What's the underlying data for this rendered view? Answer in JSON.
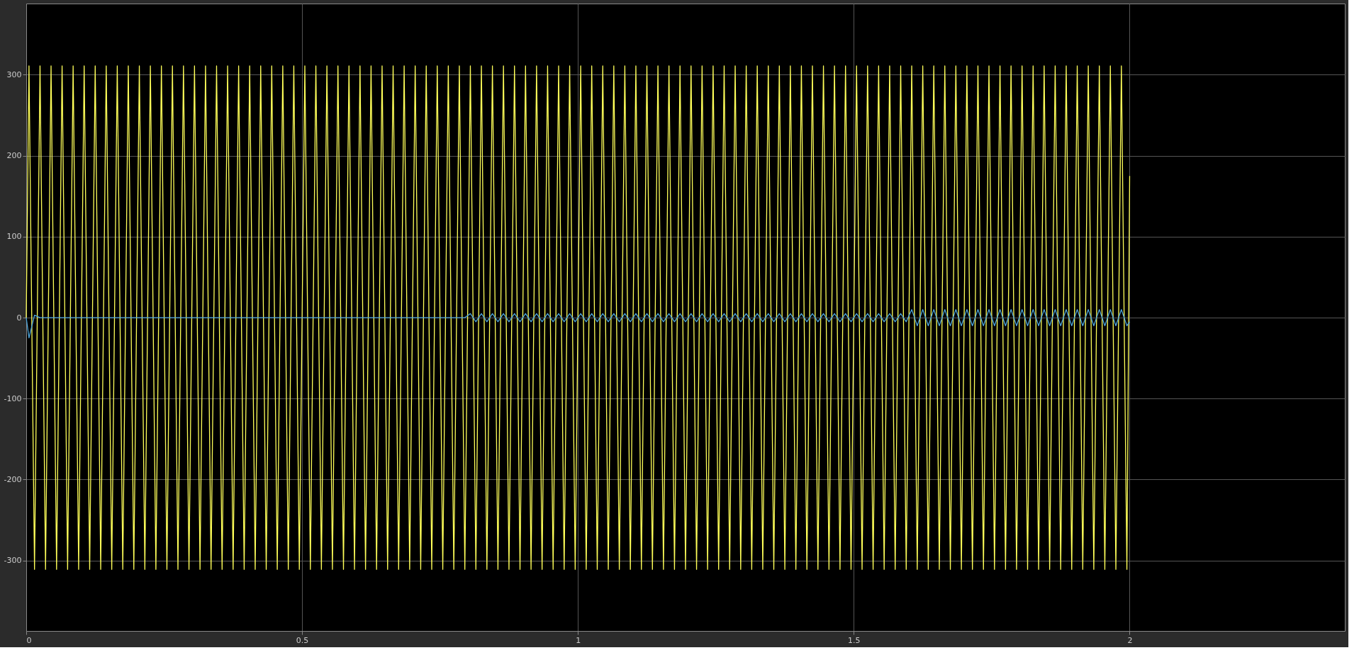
{
  "chart_data": {
    "type": "line",
    "x": [
      0,
      0.005,
      0.015,
      0.025,
      0.035,
      0.045,
      0.055,
      0.065,
      0.075,
      0.085,
      0.095,
      0.105,
      0.115,
      0.125,
      0.135,
      0.145,
      0.155,
      0.165,
      0.175,
      0.185,
      0.195,
      0.205,
      0.215,
      0.225,
      0.235,
      0.245,
      0.255,
      0.265,
      0.275,
      0.285,
      0.295,
      0.305,
      0.315,
      0.325,
      0.335,
      0.345,
      0.355,
      0.365,
      0.375,
      0.385,
      0.395,
      0.405,
      0.415,
      0.425,
      0.435,
      0.445,
      0.455,
      0.465,
      0.475,
      0.485,
      0.495,
      0.505,
      0.515,
      0.525,
      0.535,
      0.545,
      0.555,
      0.565,
      0.575,
      0.585,
      0.595,
      0.605,
      0.615,
      0.625,
      0.635,
      0.645,
      0.655,
      0.665,
      0.675,
      0.685,
      0.695,
      0.705,
      0.715,
      0.725,
      0.735,
      0.745,
      0.755,
      0.765,
      0.775,
      0.785,
      0.795,
      0.805,
      0.815,
      0.825,
      0.835,
      0.845,
      0.855,
      0.865,
      0.875,
      0.885,
      0.895,
      0.905,
      0.915,
      0.925,
      0.935,
      0.945,
      0.955,
      0.965,
      0.975,
      0.985,
      0.995,
      1.005,
      1.015,
      1.025,
      1.035,
      1.045,
      1.055,
      1.065,
      1.075,
      1.085,
      1.095,
      1.105,
      1.115,
      1.125,
      1.135,
      1.145,
      1.155,
      1.165,
      1.175,
      1.185,
      1.195,
      1.205,
      1.215,
      1.225,
      1.235,
      1.245,
      1.255,
      1.265,
      1.275,
      1.285,
      1.295,
      1.305,
      1.315,
      1.325,
      1.335,
      1.345,
      1.355,
      1.365,
      1.375,
      1.385,
      1.395,
      1.405,
      1.415,
      1.425,
      1.435,
      1.445,
      1.455,
      1.465,
      1.475,
      1.485,
      1.495,
      1.505,
      1.515,
      1.525,
      1.535,
      1.545,
      1.555,
      1.565,
      1.575,
      1.585,
      1.595,
      1.605,
      1.615,
      1.625,
      1.635,
      1.645,
      1.655,
      1.665,
      1.675,
      1.685,
      1.695,
      1.705,
      1.715,
      1.725,
      1.735,
      1.745,
      1.755,
      1.765,
      1.775,
      1.785,
      1.795,
      1.805,
      1.815,
      1.825,
      1.835,
      1.845,
      1.855,
      1.865,
      1.875,
      1.885,
      1.895,
      1.905,
      1.915,
      1.925,
      1.935,
      1.945,
      1.955,
      1.965,
      1.975,
      1.985,
      1.995,
      2
    ],
    "series": [
      {
        "color": "#ffff59",
        "values": [
          0,
          311,
          -311,
          311,
          -311,
          311,
          -311,
          311,
          -311,
          311,
          -311,
          311,
          -311,
          311,
          -311,
          311,
          -311,
          311,
          -311,
          311,
          -311,
          311,
          -311,
          311,
          -311,
          311,
          -311,
          311,
          -311,
          311,
          -311,
          311,
          -311,
          311,
          -311,
          311,
          -311,
          311,
          -311,
          311,
          -311,
          311,
          -311,
          311,
          -311,
          311,
          -311,
          311,
          -311,
          311,
          -311,
          311,
          -311,
          311,
          -311,
          311,
          -311,
          311,
          -311,
          311,
          -311,
          311,
          -311,
          311,
          -311,
          311,
          -311,
          311,
          -311,
          311,
          -311,
          311,
          -311,
          311,
          -311,
          311,
          -311,
          311,
          -311,
          311,
          -311,
          311,
          -311,
          311,
          -311,
          311,
          -311,
          311,
          -311,
          311,
          -311,
          311,
          -311,
          311,
          -311,
          311,
          -311,
          311,
          -311,
          311,
          -311,
          311,
          -311,
          311,
          -311,
          311,
          -311,
          311,
          -311,
          311,
          -311,
          311,
          -311,
          311,
          -311,
          311,
          -311,
          311,
          -311,
          311,
          -311,
          311,
          -311,
          311,
          -311,
          311,
          -311,
          311,
          -311,
          311,
          -311,
          311,
          -311,
          311,
          -311,
          311,
          -311,
          311,
          -311,
          311,
          -311,
          311,
          -311,
          311,
          -311,
          311,
          -311,
          311,
          -311,
          311,
          -311,
          311,
          -311,
          311,
          -311,
          311,
          -311,
          311,
          -311,
          311,
          -311,
          311,
          -311,
          311,
          -311,
          311,
          -311,
          311,
          -311,
          311,
          -311,
          311,
          -311,
          311,
          -311,
          311,
          -311,
          311,
          -311,
          311,
          -311,
          311,
          -311,
          311,
          -311,
          311,
          -311,
          311,
          -311,
          311,
          -311,
          311,
          -311,
          311,
          -311,
          311,
          -311,
          311,
          -311,
          311,
          -311,
          175
        ]
      },
      {
        "color": "#4da6dd",
        "values": [
          0,
          -25,
          3,
          0,
          0,
          0,
          0,
          0,
          0,
          0,
          0,
          0,
          0,
          0,
          0,
          0,
          0,
          0,
          0,
          0,
          0,
          0,
          0,
          0,
          0,
          0,
          0,
          0,
          0,
          0,
          0,
          0,
          0,
          0,
          0,
          0,
          0,
          0,
          0,
          0,
          0,
          0,
          0,
          0,
          0,
          0,
          0,
          0,
          0,
          0,
          0,
          0,
          0,
          0,
          0,
          0,
          0,
          0,
          0,
          0,
          0,
          0,
          0,
          0,
          0,
          0,
          0,
          0,
          0,
          0,
          0,
          0,
          0,
          0,
          0,
          0,
          0,
          0,
          0,
          0,
          0,
          5,
          -5,
          5,
          -5,
          5,
          -5,
          5,
          -5,
          5,
          -5,
          5,
          -5,
          5,
          -5,
          5,
          -5,
          5,
          -5,
          5,
          -5,
          5,
          -5,
          5,
          -5,
          5,
          -5,
          5,
          -5,
          5,
          -5,
          5,
          -5,
          5,
          -5,
          5,
          -5,
          5,
          -5,
          5,
          -5,
          5,
          -5,
          5,
          -5,
          5,
          -5,
          5,
          -5,
          5,
          -5,
          5,
          -5,
          5,
          -5,
          5,
          -5,
          5,
          -5,
          5,
          -5,
          5,
          -5,
          5,
          -5,
          5,
          -5,
          5,
          -5,
          5,
          -5,
          5,
          -5,
          5,
          -5,
          5,
          -5,
          5,
          -5,
          5,
          -5,
          10,
          -10,
          10,
          -10,
          10,
          -10,
          10,
          -10,
          10,
          -10,
          10,
          -10,
          10,
          -10,
          10,
          -10,
          10,
          -10,
          10,
          -10,
          10,
          -10,
          10,
          -10,
          10,
          -10,
          10,
          -10,
          10,
          -10,
          10,
          -10,
          10,
          -10,
          10,
          -10,
          10,
          -10,
          10,
          -10,
          -5
        ]
      }
    ],
    "xlim": [
      0,
      2.39
    ],
    "xticks": [
      0,
      0.5,
      1,
      1.5,
      2
    ],
    "ylim": [
      -387,
      388
    ],
    "yticks": [
      -300,
      -200,
      -100,
      0,
      100,
      200,
      300
    ],
    "grid": true,
    "legend": false
  }
}
